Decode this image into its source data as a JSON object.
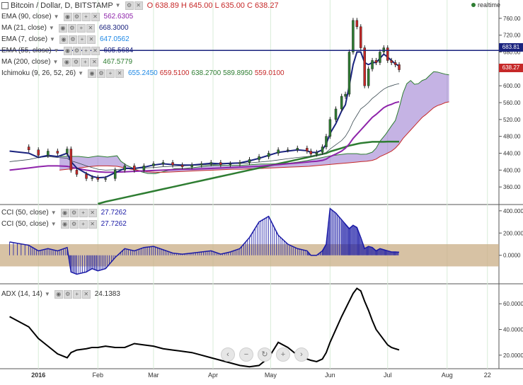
{
  "header": {
    "symbol": "Bitcoin / Dollar, D, BITSTAMP",
    "ohlc": {
      "o": "O 638.89",
      "h": "H 645.00",
      "l": "L 635.00",
      "c": "C 638.27"
    },
    "realtime": "realtime"
  },
  "indicators": [
    {
      "name": "EMA (90, close)",
      "value": "562.6305",
      "color": "#8e24aa"
    },
    {
      "name": "MA (21, close)",
      "value": "668.3000",
      "color": "#1a237e"
    },
    {
      "name": "EMA (7, close)",
      "value": "647.0562",
      "color": "#1e88e5"
    },
    {
      "name": "EMA (55, close)",
      "value": "605.5684",
      "color": "#1a237e"
    },
    {
      "name": "MA (200, close)",
      "value": "467.5779",
      "color": "#2e7d32"
    }
  ],
  "ichimoku": {
    "name": "Ichimoku (9, 26, 52, 26)",
    "values": [
      {
        "v": "655.2450",
        "color": "#1e88e5"
      },
      {
        "v": "659.5100",
        "color": "#c62828"
      },
      {
        "v": "638.2700",
        "color": "#2e7d32"
      },
      {
        "v": "589.8950",
        "color": "#2e7d32"
      },
      {
        "v": "559.0100",
        "color": "#c62828"
      }
    ]
  },
  "cci_panels": [
    {
      "name": "CCI (50, close)",
      "value": "27.7262"
    },
    {
      "name": "CCI (50, close)",
      "value": "27.7262"
    }
  ],
  "adx": {
    "name": "ADX (14, 14)",
    "value": "24.1383"
  },
  "price_tags": {
    "line_level": "683.81",
    "last_price": "638.27"
  },
  "colors": {
    "ema90": "#8e24aa",
    "ema7": "#1e88e5",
    "ema55": "#1a237e",
    "ma200": "#2e7d32",
    "cloud_bull": "#9575cd",
    "cloud_bear": "#1b5e20",
    "cci": "#1a1aa6",
    "cci_band": "#c9ad86",
    "hline": "#1a237e",
    "up": "#2e7d32",
    "down": "#c62828"
  },
  "chart_data": [
    {
      "type": "line",
      "panel": "price",
      "ylim": [
        320,
        790
      ],
      "yticks": [
        "760.00",
        "720.00",
        "680.00",
        "640.00",
        "600.00",
        "560.00",
        "520.00",
        "480.00",
        "440.00",
        "400.00",
        "360.00"
      ],
      "xticks": [
        "2016",
        "Feb",
        "Mar",
        "Apr",
        "May",
        "Jun",
        "Jul",
        "Aug",
        "22"
      ],
      "xtick_days": [
        0,
        31,
        60,
        91,
        121,
        152,
        182,
        213,
        234
      ],
      "horizontal_line": 683.81,
      "last_close": 638.27,
      "x_days": [
        -15,
        -5,
        0,
        5,
        10,
        15,
        17,
        20,
        25,
        28,
        31,
        35,
        40,
        45,
        50,
        55,
        60,
        65,
        70,
        75,
        80,
        85,
        90,
        95,
        100,
        105,
        110,
        115,
        120,
        125,
        130,
        135,
        140,
        142,
        145,
        148,
        150,
        152,
        155,
        158,
        160,
        162,
        164,
        166,
        168,
        170,
        172,
        174,
        176,
        178,
        180,
        182,
        184,
        186,
        188
      ],
      "series": [
        {
          "name": "close",
          "values": [
            455,
            448,
            435,
            445,
            440,
            450,
            400,
            390,
            380,
            382,
            378,
            380,
            400,
            410,
            400,
            410,
            415,
            418,
            412,
            408,
            412,
            415,
            418,
            413,
            415,
            418,
            425,
            432,
            440,
            448,
            448,
            452,
            445,
            438,
            442,
            455,
            480,
            520,
            545,
            575,
            580,
            680,
            755,
            740,
            690,
            600,
            640,
            660,
            655,
            680,
            690,
            660,
            655,
            650,
            638
          ]
        },
        {
          "name": "EMA (7, close)",
          "values": [
            445,
            440,
            430,
            435,
            432,
            440,
            420,
            405,
            392,
            385,
            382,
            383,
            394,
            404,
            404,
            407,
            412,
            415,
            413,
            412,
            412,
            414,
            416,
            415,
            416,
            417,
            422,
            428,
            435,
            442,
            445,
            448,
            446,
            442,
            442,
            448,
            462,
            487,
            510,
            540,
            555,
            600,
            650,
            680,
            680,
            655,
            650,
            655,
            655,
            665,
            675,
            668,
            660,
            652,
            647
          ]
        },
        {
          "name": "EMA (55, close)",
          "values": [
            420,
            425,
            430,
            432,
            430,
            428,
            422,
            418,
            410,
            406,
            402,
            400,
            401,
            403,
            404,
            405,
            406,
            408,
            409,
            410,
            411,
            412,
            413,
            414,
            415,
            416,
            417,
            419,
            421,
            424,
            427,
            430,
            432,
            433,
            434,
            437,
            442,
            450,
            460,
            470,
            480,
            495,
            515,
            530,
            545,
            552,
            560,
            570,
            577,
            585,
            592,
            597,
            600,
            603,
            605
          ]
        },
        {
          "name": "EMA (90, close)",
          "values": [
            400,
            405,
            408,
            410,
            410,
            409,
            407,
            404,
            400,
            398,
            396,
            395,
            395,
            396,
            397,
            398,
            399,
            400,
            401,
            402,
            402,
            403,
            404,
            405,
            406,
            407,
            408,
            409,
            411,
            413,
            415,
            417,
            419,
            420,
            421,
            423,
            426,
            432,
            438,
            445,
            452,
            462,
            475,
            485,
            495,
            505,
            515,
            525,
            532,
            540,
            548,
            553,
            556,
            560,
            562
          ]
        },
        {
          "name": "MA (200, close)",
          "values": [
            null,
            null,
            null,
            null,
            null,
            null,
            null,
            null,
            null,
            null,
            320,
            325,
            330,
            335,
            340,
            345,
            350,
            355,
            360,
            365,
            370,
            375,
            380,
            385,
            390,
            395,
            400,
            405,
            410,
            415,
            420,
            425,
            430,
            432,
            435,
            438,
            440,
            444,
            448,
            452,
            455,
            458,
            460,
            462,
            464,
            465,
            466,
            467,
            467,
            467,
            467,
            467.5,
            467.5,
            467.6,
            467.6
          ]
        },
        {
          "name": "Ichimoku Span A",
          "values": [
            null,
            null,
            null,
            null,
            null,
            null,
            null,
            null,
            null,
            null,
            null,
            null,
            null,
            null,
            null,
            null,
            null,
            null,
            null,
            null,
            null,
            null,
            null,
            null,
            null,
            null,
            null,
            null,
            null,
            null,
            null,
            null,
            null,
            null,
            null,
            null,
            null,
            null,
            null,
            null,
            null,
            null,
            null,
            null,
            null,
            null,
            null,
            null,
            null,
            null,
            null,
            null,
            null,
            null,
            null
          ]
        }
      ],
      "candles_sample": "daily OHLC candles, green up / red down"
    },
    {
      "type": "bar",
      "panel": "cci",
      "ylim": [
        -250,
        450
      ],
      "yticks": [
        "400.0000",
        "200.0000",
        "0.0000"
      ],
      "band": [
        -100,
        100
      ],
      "x_days": [
        -15,
        -5,
        0,
        5,
        10,
        15,
        17,
        20,
        25,
        28,
        31,
        35,
        40,
        45,
        50,
        55,
        60,
        65,
        70,
        75,
        80,
        85,
        90,
        95,
        100,
        105,
        110,
        115,
        120,
        125,
        130,
        135,
        140,
        142,
        145,
        148,
        150,
        152,
        155,
        158,
        160,
        162,
        164,
        166,
        168,
        170,
        172,
        174,
        176,
        178,
        180,
        182,
        184,
        186,
        188
      ],
      "values": [
        120,
        90,
        40,
        60,
        40,
        70,
        -150,
        -170,
        -150,
        -120,
        -140,
        -120,
        -20,
        60,
        40,
        70,
        80,
        50,
        20,
        10,
        20,
        30,
        40,
        10,
        30,
        60,
        160,
        300,
        350,
        180,
        100,
        60,
        40,
        0,
        0,
        40,
        100,
        420,
        380,
        320,
        280,
        240,
        270,
        250,
        160,
        60,
        80,
        70,
        40,
        60,
        50,
        40,
        30,
        30,
        27.7
      ]
    },
    {
      "type": "line",
      "panel": "adx",
      "ylim": [
        10,
        75
      ],
      "yticks": [
        "60.0000",
        "40.0000",
        "20.0000"
      ],
      "x_days": [
        -15,
        -5,
        0,
        5,
        10,
        15,
        17,
        20,
        25,
        28,
        31,
        35,
        40,
        45,
        50,
        55,
        60,
        65,
        70,
        75,
        80,
        85,
        90,
        95,
        100,
        105,
        110,
        115,
        120,
        125,
        130,
        135,
        140,
        142,
        145,
        148,
        150,
        152,
        155,
        158,
        160,
        162,
        164,
        166,
        168,
        170,
        172,
        174,
        176,
        178,
        180,
        182,
        184,
        186,
        188
      ],
      "values": [
        50,
        42,
        33,
        27,
        21,
        18,
        22,
        24,
        25,
        26,
        26,
        27,
        26,
        26,
        29,
        28,
        27,
        25,
        24,
        23,
        22,
        20,
        18,
        16,
        14,
        12,
        11,
        12,
        18,
        30,
        26,
        20,
        17,
        16,
        15,
        17,
        22,
        30,
        40,
        50,
        56,
        62,
        68,
        72,
        70,
        62,
        55,
        47,
        40,
        36,
        32,
        28,
        26,
        25,
        24.1
      ]
    }
  ]
}
